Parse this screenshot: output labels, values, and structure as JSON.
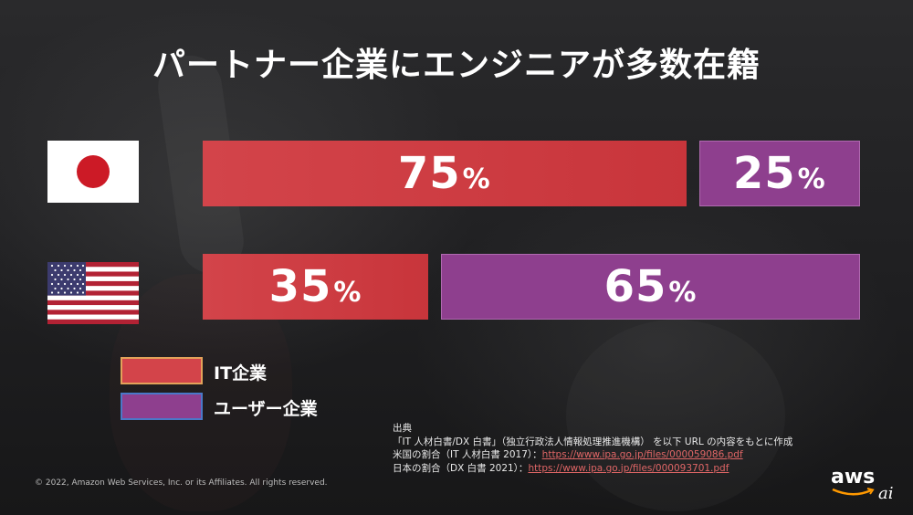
{
  "title": "パートナー企業にエンジニアが多数在籍",
  "chart_data": {
    "type": "bar",
    "stacked": true,
    "orientation": "horizontal",
    "categories": [
      "日本",
      "米国"
    ],
    "series": [
      {
        "name": "IT企業",
        "values": [
          75,
          35
        ],
        "color": "#d3444a"
      },
      {
        "name": "ユーザー企業",
        "values": [
          25,
          65
        ],
        "color": "#8e3f8e"
      }
    ],
    "unit": "%",
    "xlim": [
      0,
      100
    ],
    "legend": "bottom-left",
    "grid": false
  },
  "rows": [
    {
      "flag": "japan-flag-icon",
      "segments": [
        {
          "value": "75",
          "unit": "%"
        },
        {
          "value": "25",
          "unit": "%"
        }
      ]
    },
    {
      "flag": "usa-flag-icon",
      "segments": [
        {
          "value": "35",
          "unit": "%"
        },
        {
          "value": "65",
          "unit": "%"
        }
      ]
    }
  ],
  "legend": {
    "items": [
      {
        "label": "IT企業",
        "color": "#d3444a"
      },
      {
        "label": "ユーザー企業",
        "color": "#8e3f8e"
      }
    ]
  },
  "source": {
    "heading": "出典",
    "line1": "「IT 人材白書/DX 白書」（独立行政法人情報処理推進機構） を以下 URL の内容をもとに作成",
    "line2_label": "米国の割合（IT 人材白書 2017）：",
    "line2_link": "https://www.ipa.go.jp/files/000059086.pdf",
    "line3_label": "日本の割合（DX 白書 2021）：",
    "line3_link": "https://www.ipa.go.jp/files/000093701.pdf"
  },
  "copyright": "© 2022, Amazon Web Services, Inc. or its Affiliates. All rights reserved.",
  "logo": {
    "text": "aws",
    "icon": "aws-smile-icon"
  },
  "badge": {
    "text": "ai"
  }
}
